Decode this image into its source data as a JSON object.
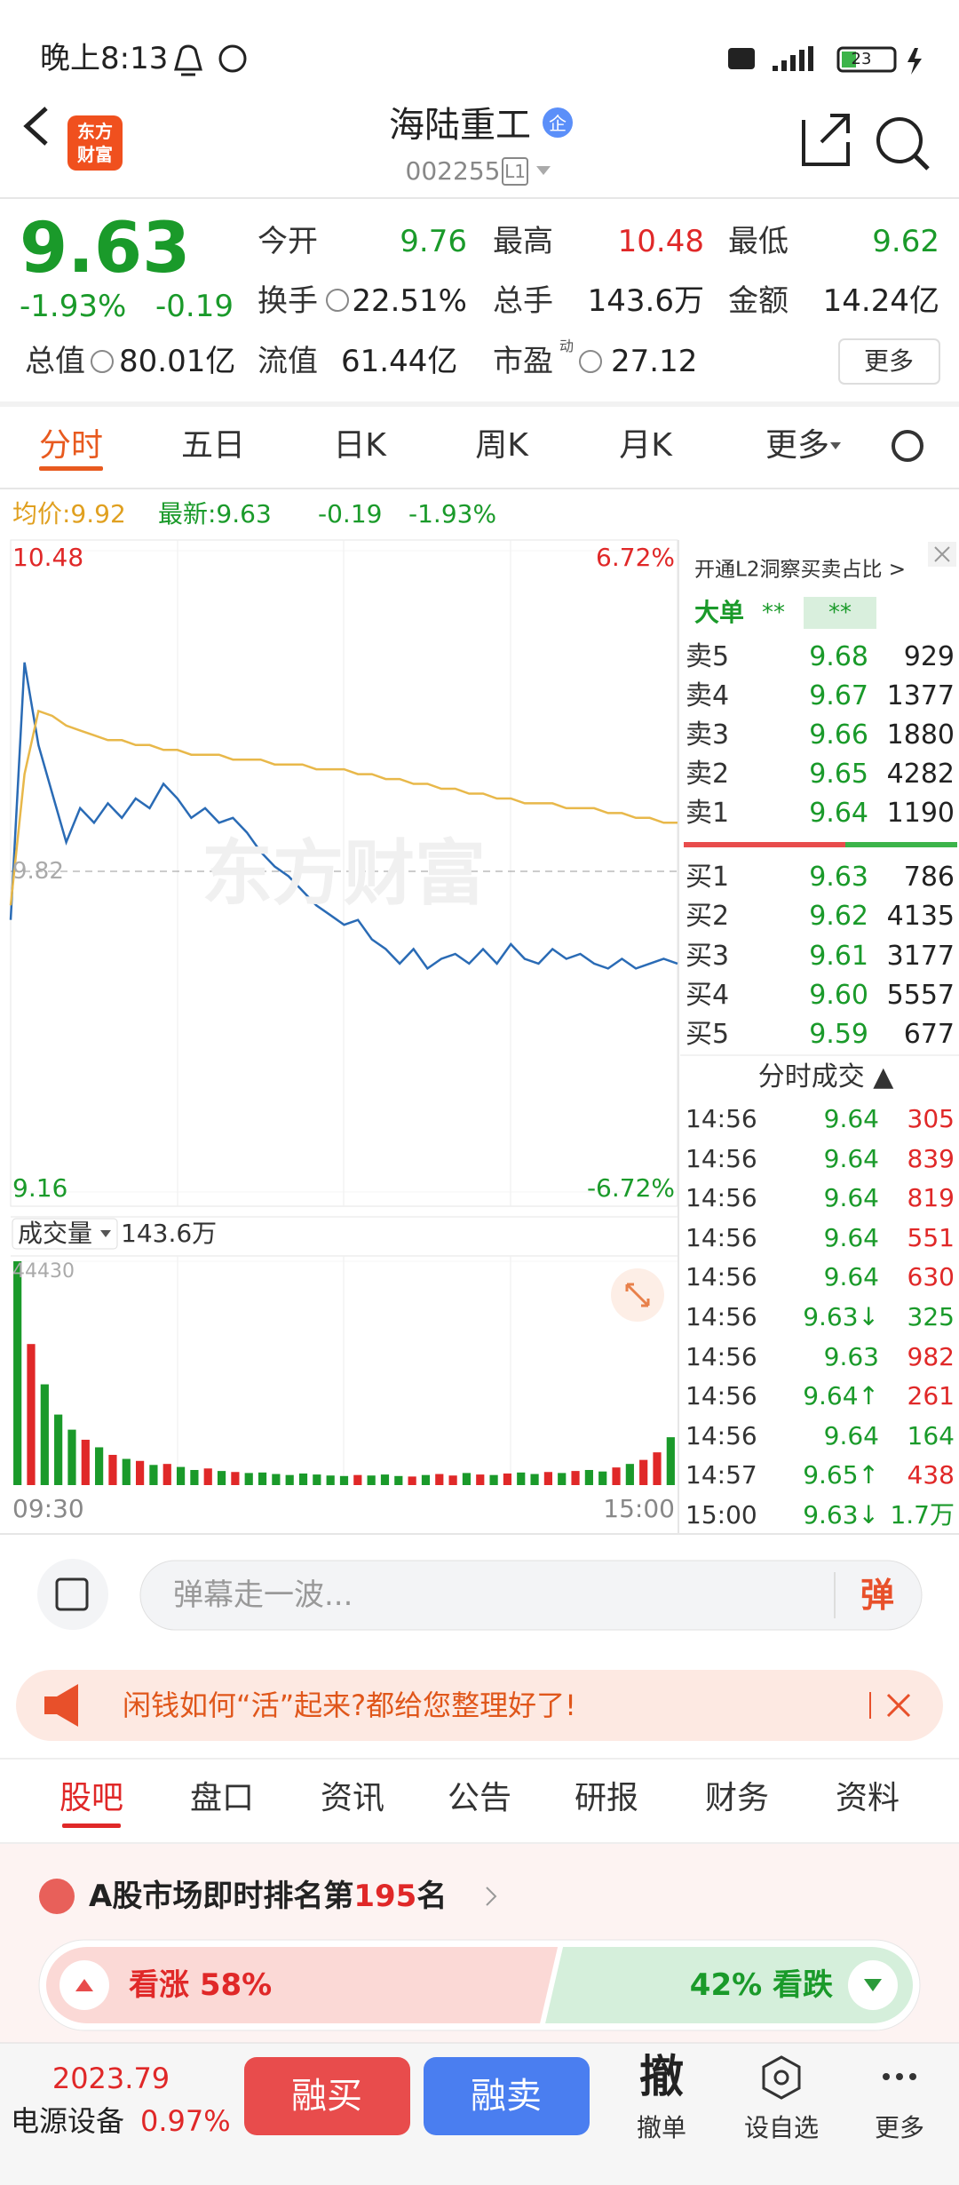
{
  "status_bar": {
    "time": "晚上8:13",
    "battery": "23"
  },
  "header": {
    "logo_top": "东方",
    "logo_bottom": "财富",
    "title": "海陆重工",
    "badge": "企",
    "code": "002255",
    "code_tag": "L1"
  },
  "quote": {
    "price": "9.63",
    "change_pct": "-1.93%",
    "change": "-0.19",
    "more": "更多",
    "pe_sup": "动",
    "fields": [
      {
        "label": "今开",
        "value": "9.76",
        "color": "#1a9a2a"
      },
      {
        "label": "最高",
        "value": "10.48",
        "color": "#e02828"
      },
      {
        "label": "最低",
        "value": "9.62",
        "color": "#1a9a2a"
      },
      {
        "label": "换手",
        "value": "22.51%",
        "color": "#222"
      },
      {
        "label": "总手",
        "value": "143.6万",
        "color": "#222"
      },
      {
        "label": "金额",
        "value": "14.24亿",
        "color": "#222"
      },
      {
        "label": "总值",
        "value": "80.01亿",
        "color": "#222"
      },
      {
        "label": "流值",
        "value": "61.44亿",
        "color": "#222"
      },
      {
        "label": "市盈",
        "value": "27.12",
        "color": "#222"
      }
    ]
  },
  "tabs": [
    "分时",
    "五日",
    "日K",
    "周K",
    "月K",
    "更多"
  ],
  "chart_info": {
    "avg": "均价:9.92",
    "latest": "最新:9.63",
    "change": "-0.19",
    "change_pct": "-1.93%"
  },
  "chart_data": {
    "type": "line",
    "ylim": [
      9.16,
      10.48
    ],
    "prev_close": 9.82,
    "pct_top": "6.72%",
    "pct_bottom": "-6.72%",
    "watermark": "东方财富",
    "x_labels": [
      "09:30",
      "15:00"
    ],
    "series": [
      {
        "color": "#2a6bb5",
        "values": [
          9.72,
          10.25,
          10.08,
          9.98,
          9.88,
          9.95,
          9.92,
          9.96,
          9.93,
          9.97,
          9.95,
          10.0,
          9.97,
          9.93,
          9.95,
          9.92,
          9.93,
          9.9,
          9.86,
          9.83,
          9.81,
          9.78,
          9.75,
          9.73,
          9.71,
          9.72,
          9.68,
          9.66,
          9.63,
          9.66,
          9.62,
          9.64,
          9.65,
          9.63,
          9.66,
          9.63,
          9.67,
          9.64,
          9.63,
          9.66,
          9.64,
          9.65,
          9.63,
          9.62,
          9.64,
          9.62,
          9.63,
          9.64,
          9.63
        ]
      },
      {
        "color": "#e8b84a",
        "values": [
          9.75,
          10.02,
          10.15,
          10.14,
          10.12,
          10.11,
          10.1,
          10.09,
          10.09,
          10.08,
          10.08,
          10.07,
          10.07,
          10.06,
          10.06,
          10.06,
          10.05,
          10.05,
          10.05,
          10.04,
          10.04,
          10.04,
          10.03,
          10.03,
          10.03,
          10.02,
          10.02,
          10.01,
          10.01,
          10.0,
          10.0,
          9.99,
          9.99,
          9.98,
          9.98,
          9.97,
          9.97,
          9.96,
          9.96,
          9.96,
          9.95,
          9.95,
          9.95,
          9.94,
          9.94,
          9.93,
          9.93,
          9.92,
          9.92
        ]
      }
    ],
    "volume": {
      "label": "成交量",
      "total": "143.6万",
      "ylim": [
        0,
        44430
      ],
      "up_color": "#e02828",
      "down_color": "#1a9a2a",
      "values": [
        44430,
        28000,
        20000,
        14000,
        11000,
        9000,
        7500,
        6000,
        5200,
        4800,
        4000,
        4200,
        3600,
        3000,
        3300,
        2800,
        2600,
        2400,
        2500,
        2200,
        2000,
        2300,
        2100,
        1900,
        1800,
        2000,
        1900,
        2100,
        1800,
        1700,
        2000,
        2200,
        1900,
        2400,
        2100,
        2000,
        2300,
        2500,
        2200,
        2600,
        2400,
        2800,
        3000,
        2700,
        3500,
        4200,
        5000,
        6500,
        9500
      ]
    }
  },
  "level2": {
    "title": "开通L2洞察买卖占比 >",
    "big_order": "大单",
    "stars1": "**",
    "stars2": "**"
  },
  "order_book": {
    "asks": [
      {
        "label": "卖5",
        "price": "9.68",
        "volume": "929"
      },
      {
        "label": "卖4",
        "price": "9.67",
        "volume": "1377"
      },
      {
        "label": "卖3",
        "price": "9.66",
        "volume": "1880"
      },
      {
        "label": "卖2",
        "price": "9.65",
        "volume": "4282"
      },
      {
        "label": "卖1",
        "price": "9.64",
        "volume": "1190"
      }
    ],
    "bids": [
      {
        "label": "买1",
        "price": "9.63",
        "volume": "786"
      },
      {
        "label": "买2",
        "price": "9.62",
        "volume": "4135"
      },
      {
        "label": "买3",
        "price": "9.61",
        "volume": "3177"
      },
      {
        "label": "买4",
        "price": "9.60",
        "volume": "5557"
      },
      {
        "label": "买5",
        "price": "9.59",
        "volume": "677"
      }
    ]
  },
  "trades": {
    "title": "分时成交 ▲",
    "rows": [
      {
        "time": "14:56",
        "price": "9.64",
        "volume": "305",
        "color": "#e02828"
      },
      {
        "time": "14:56",
        "price": "9.64",
        "volume": "839",
        "color": "#e02828"
      },
      {
        "time": "14:56",
        "price": "9.64",
        "volume": "819",
        "color": "#e02828"
      },
      {
        "time": "14:56",
        "price": "9.64",
        "volume": "551",
        "color": "#e02828"
      },
      {
        "time": "14:56",
        "price": "9.64",
        "volume": "630",
        "color": "#e02828"
      },
      {
        "time": "14:56",
        "price": "9.63↓",
        "volume": "325",
        "color": "#1a9a2a"
      },
      {
        "time": "14:56",
        "price": "9.63",
        "volume": "982",
        "color": "#e02828"
      },
      {
        "time": "14:56",
        "price": "9.64↑",
        "volume": "261",
        "color": "#e02828"
      },
      {
        "time": "14:56",
        "price": "9.64",
        "volume": "164",
        "color": "#1a9a2a"
      },
      {
        "time": "14:57",
        "price": "9.65↑",
        "volume": "438",
        "color": "#e02828"
      },
      {
        "time": "15:00",
        "price": "9.63↓",
        "volume": "1.7万",
        "color": "#1a9a2a"
      }
    ]
  },
  "comment_bar": {
    "placeholder": "弹幕走一波...",
    "button": "弹"
  },
  "banner": {
    "text": "闲钱如何“活”起来?都给您整理好了!"
  },
  "nav_tabs": [
    "股吧",
    "盘口",
    "资讯",
    "公告",
    "研报",
    "财务",
    "资料"
  ],
  "ranking": {
    "prefix": "A股市场即时排名第",
    "rank": "195",
    "suffix": "名"
  },
  "sentiment": {
    "up_label": "看涨 58%",
    "down_label": "42% 看跌",
    "up": 58,
    "down": 42
  },
  "bottom_bar": {
    "index_value": "2023.79",
    "sector": "电源设备",
    "sector_change": "0.97%",
    "buy": "融买",
    "sell": "融卖",
    "cancel_icon": "撤",
    "cancel": "撤单",
    "watch": "设自选",
    "more": "更多"
  }
}
